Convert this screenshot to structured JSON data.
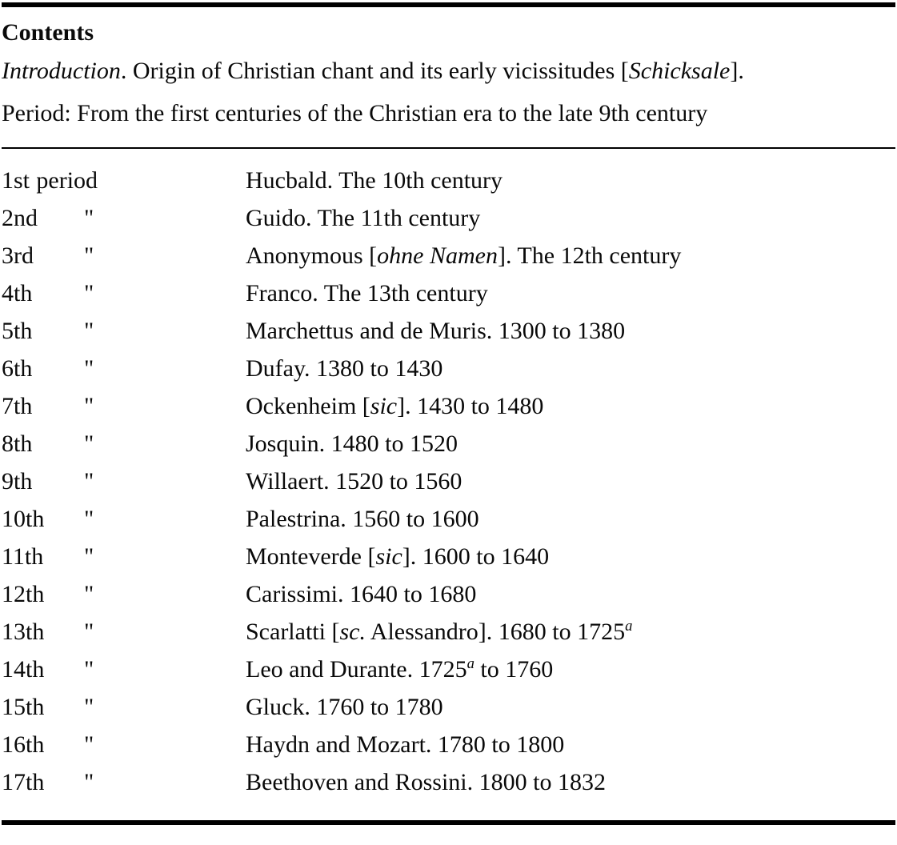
{
  "document": {
    "title": "Contents",
    "intro_line_parts": [
      {
        "text": "Introduction",
        "style": "italic"
      },
      {
        "text": ". Origin of Christian chant and its early vicissitudes ["
      },
      {
        "text": "Schicksale",
        "style": "italic"
      },
      {
        "text": "]."
      }
    ],
    "period_line": "Period: From the first centuries of the Christian era to the late 9th century",
    "ditto_mark": "\"",
    "rows": [
      {
        "ordinal": "1st",
        "label": "period",
        "parts": [
          {
            "text": "Hucbald. The 10th century"
          }
        ]
      },
      {
        "ordinal": "2nd",
        "ditto": true,
        "parts": [
          {
            "text": "Guido. The 11th century"
          }
        ]
      },
      {
        "ordinal": "3rd",
        "ditto": true,
        "parts": [
          {
            "text": "Anonymous ["
          },
          {
            "text": "ohne Namen",
            "style": "italic"
          },
          {
            "text": "]. The 12th century"
          }
        ]
      },
      {
        "ordinal": "4th",
        "ditto": true,
        "parts": [
          {
            "text": "Franco. The 13th century"
          }
        ]
      },
      {
        "ordinal": "5th",
        "ditto": true,
        "parts": [
          {
            "text": "Marchettus and de Muris. 1300 to 1380"
          }
        ]
      },
      {
        "ordinal": "6th",
        "ditto": true,
        "parts": [
          {
            "text": "Dufay. 1380 to 1430"
          }
        ]
      },
      {
        "ordinal": "7th",
        "ditto": true,
        "parts": [
          {
            "text": "Ockenheim ["
          },
          {
            "text": "sic",
            "style": "italic"
          },
          {
            "text": "]. 1430 to 1480"
          }
        ]
      },
      {
        "ordinal": "8th",
        "ditto": true,
        "parts": [
          {
            "text": "Josquin. 1480 to 1520"
          }
        ]
      },
      {
        "ordinal": "9th",
        "ditto": true,
        "parts": [
          {
            "text": "Willaert. 1520 to 1560"
          }
        ]
      },
      {
        "ordinal": "10th",
        "ditto": true,
        "parts": [
          {
            "text": "Palestrina. 1560 to 1600"
          }
        ]
      },
      {
        "ordinal": "11th",
        "ditto": true,
        "parts": [
          {
            "text": "Monteverde ["
          },
          {
            "text": "sic",
            "style": "italic"
          },
          {
            "text": "]. 1600 to 1640"
          }
        ]
      },
      {
        "ordinal": "12th",
        "ditto": true,
        "parts": [
          {
            "text": "Carissimi. 1640 to 1680"
          }
        ]
      },
      {
        "ordinal": "13th",
        "ditto": true,
        "parts": [
          {
            "text": "Scarlatti ["
          },
          {
            "text": "sc.",
            "style": "italic"
          },
          {
            "text": " Alessandro]. 1680 to 1725"
          },
          {
            "text": "a",
            "style": "sup"
          }
        ]
      },
      {
        "ordinal": "14th",
        "ditto": true,
        "parts": [
          {
            "text": "Leo and Durante. 1725"
          },
          {
            "text": "a",
            "style": "sup"
          },
          {
            "text": " to 1760"
          }
        ]
      },
      {
        "ordinal": "15th",
        "ditto": true,
        "parts": [
          {
            "text": "Gluck. 1760 to 1780"
          }
        ]
      },
      {
        "ordinal": "16th",
        "ditto": true,
        "parts": [
          {
            "text": "Haydn and Mozart. 1780 to 1800"
          }
        ]
      },
      {
        "ordinal": "17th",
        "ditto": true,
        "parts": [
          {
            "text": "Beethoven and Rossini. 1800 to 1832"
          }
        ]
      }
    ],
    "colors": {
      "text": "#0a0a0a",
      "background": "#ffffff",
      "rule": "#000000"
    }
  }
}
